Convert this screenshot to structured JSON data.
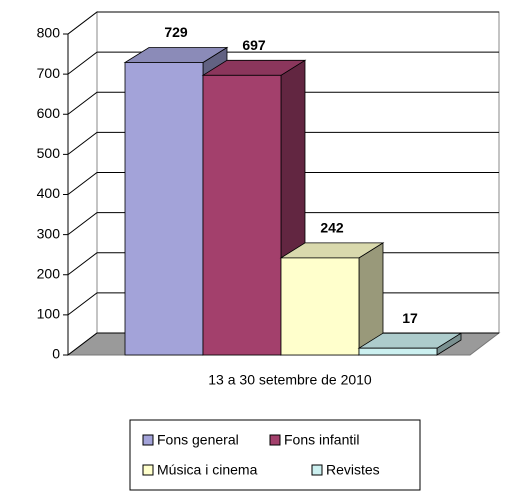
{
  "chart_data": {
    "type": "bar3d",
    "categories": [
      "13 a 30 setembre de 2010"
    ],
    "series": [
      {
        "name": "Fons general",
        "color": "#a3a3d9",
        "values": [
          729
        ]
      },
      {
        "name": "Fons infantil",
        "color": "#a3406c",
        "values": [
          697
        ]
      },
      {
        "name": "Música i cinema",
        "color": "#ffffcc",
        "values": [
          242
        ]
      },
      {
        "name": "Revistes",
        "color": "#ccf0f0",
        "values": [
          17
        ]
      }
    ],
    "ylim": [
      0,
      800
    ],
    "yticks": [
      0,
      100,
      200,
      300,
      400,
      500,
      600,
      700,
      800
    ],
    "grid": true,
    "legend": "bottom"
  }
}
